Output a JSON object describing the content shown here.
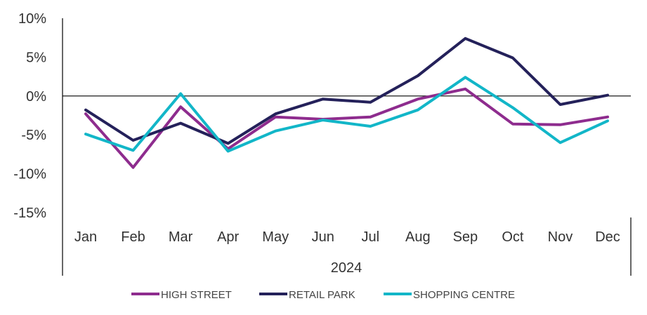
{
  "chart_data": {
    "type": "line",
    "categories": [
      "Jan",
      "Feb",
      "Mar",
      "Apr",
      "May",
      "Jun",
      "Jul",
      "Aug",
      "Sep",
      "Oct",
      "Nov",
      "Dec"
    ],
    "group_label": "2024",
    "ylim": [
      -15,
      10
    ],
    "y_ticks": [
      10,
      5,
      0,
      -5,
      -10,
      -15
    ],
    "y_tick_labels": [
      "10%",
      "5%",
      "0%",
      "-5%",
      "-10%",
      "-15%"
    ],
    "grid": false,
    "legend_position": "bottom",
    "series": [
      {
        "name": "HIGH STREET",
        "color": "#8E2C8E",
        "values": [
          -2.3,
          -9.2,
          -1.4,
          -6.8,
          -2.7,
          -3.0,
          -2.7,
          -0.4,
          0.9,
          -3.6,
          -3.7,
          -2.7
        ]
      },
      {
        "name": "RETAIL PARK",
        "color": "#24215A",
        "values": [
          -1.8,
          -5.7,
          -3.5,
          -6.1,
          -2.3,
          -0.4,
          -0.8,
          2.6,
          7.4,
          4.9,
          -1.1,
          0.1
        ]
      },
      {
        "name": "SHOPPING CENTRE",
        "color": "#12B6C8",
        "values": [
          -4.9,
          -7.0,
          0.3,
          -7.1,
          -4.5,
          -3.1,
          -3.9,
          -1.8,
          2.4,
          -1.5,
          -6.0,
          -3.2
        ]
      }
    ]
  }
}
